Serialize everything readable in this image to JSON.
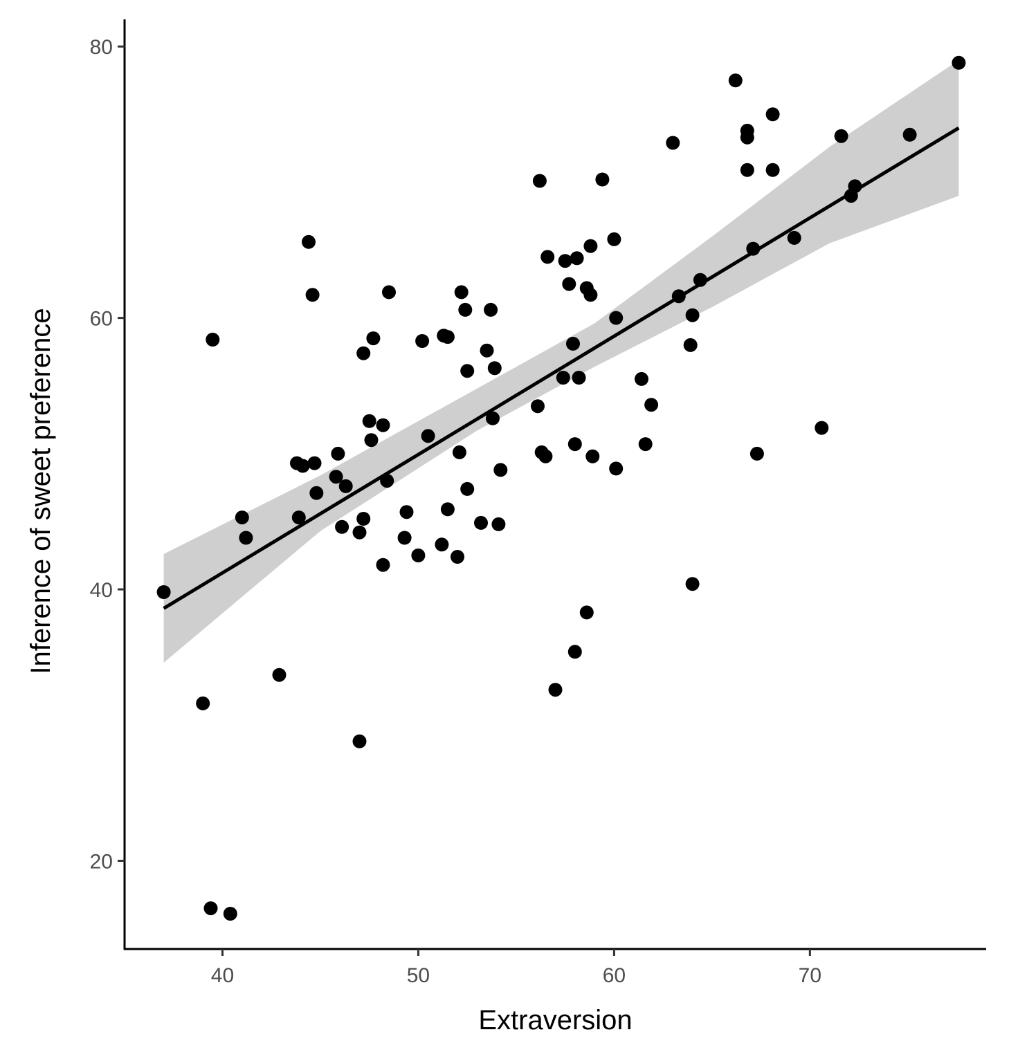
{
  "chart_data": {
    "type": "scatter",
    "title": "",
    "xlabel": "Extraversion",
    "ylabel": "Inference of sweet preference",
    "xlim": [
      35,
      79
    ],
    "ylim": [
      13.5,
      82
    ],
    "xticks": [
      40,
      50,
      60,
      70
    ],
    "yticks": [
      20,
      40,
      60,
      80
    ],
    "grid": false,
    "legend": "none",
    "colors": {
      "points": "#000000",
      "line": "#000000",
      "ribbon": "#bfbfbf"
    },
    "points": [
      [
        37.0,
        39.8
      ],
      [
        39.0,
        31.6
      ],
      [
        39.4,
        16.5
      ],
      [
        39.5,
        58.4
      ],
      [
        40.4,
        16.1
      ],
      [
        41.0,
        45.3
      ],
      [
        41.2,
        43.8
      ],
      [
        42.9,
        33.7
      ],
      [
        43.8,
        49.3
      ],
      [
        43.9,
        45.3
      ],
      [
        44.1,
        49.1
      ],
      [
        44.4,
        65.6
      ],
      [
        44.6,
        61.7
      ],
      [
        44.7,
        49.3
      ],
      [
        44.8,
        47.1
      ],
      [
        45.8,
        48.3
      ],
      [
        45.9,
        50.0
      ],
      [
        46.1,
        44.6
      ],
      [
        46.3,
        47.6
      ],
      [
        47.0,
        44.2
      ],
      [
        47.0,
        28.8
      ],
      [
        47.2,
        57.4
      ],
      [
        47.2,
        45.2
      ],
      [
        47.5,
        52.4
      ],
      [
        47.6,
        51.0
      ],
      [
        47.7,
        58.5
      ],
      [
        48.2,
        41.8
      ],
      [
        48.2,
        52.1
      ],
      [
        48.4,
        48.0
      ],
      [
        48.5,
        61.9
      ],
      [
        49.3,
        43.8
      ],
      [
        49.4,
        45.7
      ],
      [
        50.0,
        42.5
      ],
      [
        50.2,
        58.3
      ],
      [
        50.5,
        51.3
      ],
      [
        51.2,
        43.3
      ],
      [
        51.3,
        58.7
      ],
      [
        51.5,
        58.6
      ],
      [
        51.5,
        45.9
      ],
      [
        52.0,
        42.4
      ],
      [
        52.1,
        50.1
      ],
      [
        52.2,
        61.9
      ],
      [
        52.4,
        60.6
      ],
      [
        52.5,
        47.4
      ],
      [
        52.5,
        56.1
      ],
      [
        53.2,
        44.9
      ],
      [
        53.5,
        57.6
      ],
      [
        53.7,
        60.6
      ],
      [
        53.8,
        52.6
      ],
      [
        53.9,
        56.3
      ],
      [
        54.1,
        44.8
      ],
      [
        54.2,
        48.8
      ],
      [
        56.1,
        53.5
      ],
      [
        56.2,
        70.1
      ],
      [
        56.3,
        50.1
      ],
      [
        56.5,
        49.8
      ],
      [
        56.6,
        64.5
      ],
      [
        57.0,
        32.6
      ],
      [
        57.4,
        55.6
      ],
      [
        57.5,
        64.2
      ],
      [
        57.7,
        62.5
      ],
      [
        57.9,
        58.1
      ],
      [
        58.0,
        35.4
      ],
      [
        58.0,
        50.7
      ],
      [
        58.1,
        64.4
      ],
      [
        58.2,
        55.6
      ],
      [
        58.6,
        38.3
      ],
      [
        58.6,
        62.2
      ],
      [
        58.8,
        65.3
      ],
      [
        58.8,
        61.7
      ],
      [
        58.9,
        49.8
      ],
      [
        59.4,
        70.2
      ],
      [
        60.0,
        65.8
      ],
      [
        60.1,
        60.0
      ],
      [
        60.1,
        48.9
      ],
      [
        61.4,
        55.5
      ],
      [
        61.6,
        50.7
      ],
      [
        61.9,
        53.6
      ],
      [
        63.0,
        72.9
      ],
      [
        63.3,
        61.6
      ],
      [
        63.9,
        58.0
      ],
      [
        64.0,
        60.2
      ],
      [
        64.0,
        40.4
      ],
      [
        64.4,
        62.8
      ],
      [
        66.2,
        77.5
      ],
      [
        66.8,
        73.8
      ],
      [
        66.8,
        73.3
      ],
      [
        66.8,
        70.9
      ],
      [
        67.1,
        65.1
      ],
      [
        67.3,
        50.0
      ],
      [
        68.1,
        75.0
      ],
      [
        68.1,
        70.9
      ],
      [
        69.2,
        65.9
      ],
      [
        70.6,
        51.9
      ],
      [
        71.6,
        73.4
      ],
      [
        72.1,
        69.0
      ],
      [
        72.3,
        69.7
      ],
      [
        75.1,
        73.5
      ],
      [
        77.6,
        78.8
      ]
    ],
    "fit_line": {
      "x": [
        37.0,
        77.6
      ],
      "y": [
        38.6,
        74.0
      ]
    },
    "confidence_band": {
      "x": [
        37.0,
        45.0,
        53.0,
        59.0,
        65.0,
        71.0,
        77.6
      ],
      "lower": [
        34.6,
        44.3,
        51.7,
        56.4,
        60.8,
        65.5,
        69.0
      ],
      "upper": [
        42.6,
        48.4,
        54.8,
        59.6,
        66.0,
        72.6,
        79.0
      ]
    }
  }
}
